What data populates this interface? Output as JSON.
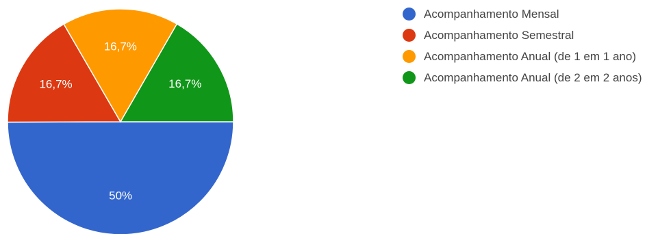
{
  "chart_data": {
    "type": "pie",
    "title": "",
    "legend_position": "right",
    "slices": [
      {
        "label": "Acompanhamento Mensal",
        "value": 50,
        "value_label": "50%",
        "color": "#3366cc"
      },
      {
        "label": "Acompanhamento Semestral",
        "value": 16.7,
        "value_label": "16,7%",
        "color": "#dc3912"
      },
      {
        "label": "Acompanhamento Anual (de 1 em 1 ano)",
        "value": 16.7,
        "value_label": "16,7%",
        "color": "#ff9900"
      },
      {
        "label": "Acompanhamento Anual (de 2 em 2 anos)",
        "value": 16.7,
        "value_label": "16,7%",
        "color": "#109618"
      }
    ]
  }
}
